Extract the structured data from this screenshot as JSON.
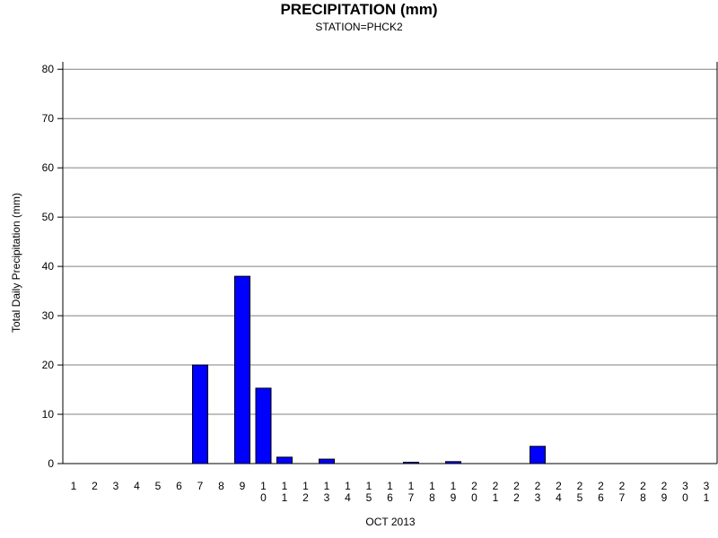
{
  "chart_data": {
    "type": "bar",
    "title": "PRECIPITATION (mm)",
    "subtitle": "STATION=PHCK2",
    "xlabel": "OCT 2013",
    "ylabel": "Total Daily Precipitation (mm)",
    "ylim": [
      0,
      80
    ],
    "yticks": [
      "0",
      "10",
      "20",
      "30",
      "40",
      "50",
      "60",
      "70",
      "80"
    ],
    "grid": true,
    "bar_color": "#0000ff",
    "categories": [
      "1",
      "2",
      "3",
      "4",
      "5",
      "6",
      "7",
      "8",
      "9",
      "10",
      "11",
      "12",
      "13",
      "14",
      "15",
      "16",
      "17",
      "18",
      "19",
      "20",
      "21",
      "22",
      "23",
      "24",
      "25",
      "26",
      "27",
      "28",
      "29",
      "30",
      "31"
    ],
    "values": [
      0,
      0,
      0,
      0,
      0,
      0,
      20,
      0,
      38,
      15.3,
      1.3,
      0,
      0.9,
      0,
      0,
      0,
      0.2,
      0,
      0.4,
      0,
      0,
      0,
      3.5,
      0,
      0,
      0,
      0,
      0,
      0,
      0,
      0
    ]
  }
}
